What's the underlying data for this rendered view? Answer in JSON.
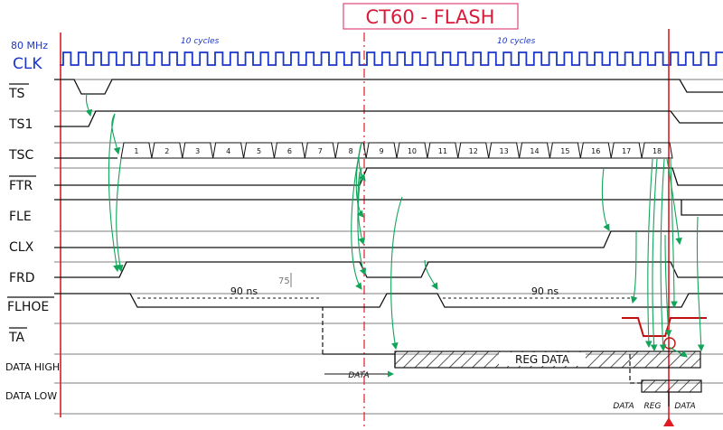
{
  "title": "CT60 - FLASH",
  "clock": {
    "freq_label": "80 MHz",
    "name": "CLK",
    "annotation_left": "10 cycles",
    "annotation_right": "10 cycles"
  },
  "signals": [
    {
      "id": "ts",
      "label": "TS",
      "overline": true
    },
    {
      "id": "ts1",
      "label": "TS1",
      "overline": false
    },
    {
      "id": "tsc",
      "label": "TSC",
      "overline": false
    },
    {
      "id": "ftr",
      "label": "FTR",
      "overline": true
    },
    {
      "id": "fle",
      "label": "FLE",
      "overline": false
    },
    {
      "id": "clx",
      "label": "CLX",
      "overline": false
    },
    {
      "id": "frd",
      "label": "FRD",
      "overline": false
    },
    {
      "id": "flhoe",
      "label": "FLHOE",
      "overline": true
    },
    {
      "id": "ta",
      "label": "TA",
      "overline": true
    },
    {
      "id": "data_high",
      "label": "DATA HIGH",
      "overline": false
    },
    {
      "id": "data_low",
      "label": "DATA LOW",
      "overline": false
    }
  ],
  "tsc_counter": [
    "1",
    "2",
    "3",
    "4",
    "5",
    "6",
    "7",
    "8",
    "9",
    "10",
    "11",
    "12",
    "13",
    "14",
    "15",
    "16",
    "17",
    "18"
  ],
  "annotations": {
    "ns_left": "90 ns",
    "ns_right": "90 ns",
    "side_mark": "75",
    "data_label": "DATA",
    "reg_data": "REG DATA",
    "low_data_left": "DATA",
    "low_reg": "REG",
    "low_data_right": "DATA"
  },
  "colors": {
    "ink": "#111111",
    "clock": "#1a36c8",
    "arrow": "#11a55a",
    "marker": "#e01b24",
    "ta_red": "#c01010",
    "title_box": "#e0457b"
  }
}
